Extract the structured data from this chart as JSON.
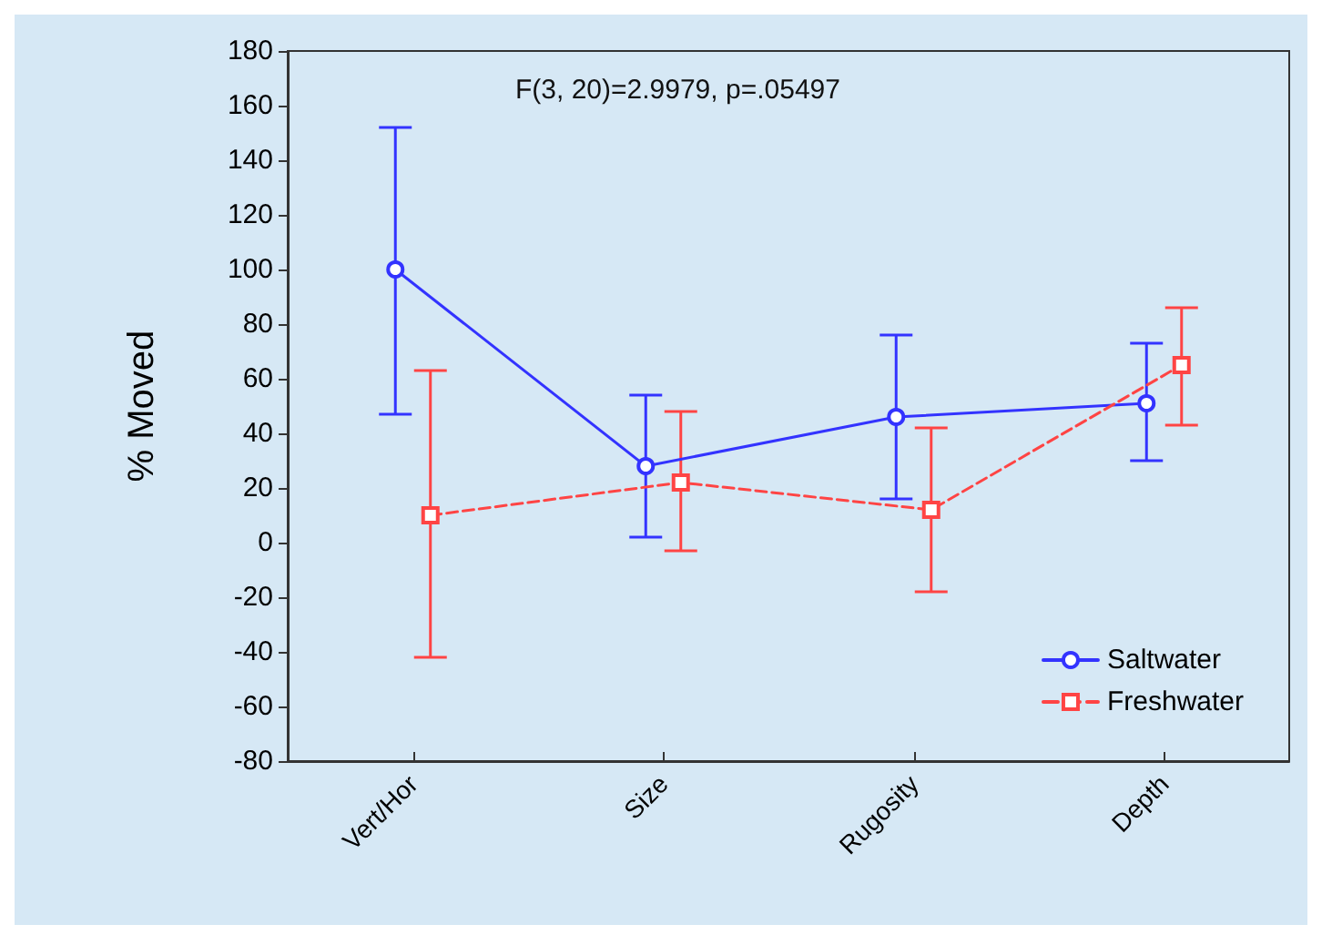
{
  "chart_data": {
    "type": "line",
    "ylabel": "% Moved",
    "annotations": [
      "F(3, 20)=2.9979, p=.05497"
    ],
    "categories": [
      "Vert/Hor",
      "Size",
      "Rugosity",
      "Depth"
    ],
    "ylim": [
      -80,
      180
    ],
    "yticks": [
      -80,
      -60,
      -40,
      -20,
      0,
      20,
      40,
      60,
      80,
      100,
      120,
      140,
      160,
      180
    ],
    "grid": false,
    "legend": "bottom right",
    "series": [
      {
        "name": "Saltwater",
        "color": "#3333ff",
        "marker": "circle",
        "line_style": "solid",
        "values": [
          100,
          28,
          46,
          51
        ],
        "errors": [
          [
            47,
            152
          ],
          [
            2,
            54
          ],
          [
            16,
            76
          ],
          [
            30,
            73
          ]
        ]
      },
      {
        "name": "Freshwater",
        "color": "#ff4444",
        "marker": "square",
        "line_style": "dashed",
        "values": [
          10,
          22,
          12,
          65
        ],
        "errors": [
          [
            -42,
            63
          ],
          [
            -3,
            48
          ],
          [
            -18,
            42
          ],
          [
            43,
            86
          ]
        ]
      }
    ]
  }
}
